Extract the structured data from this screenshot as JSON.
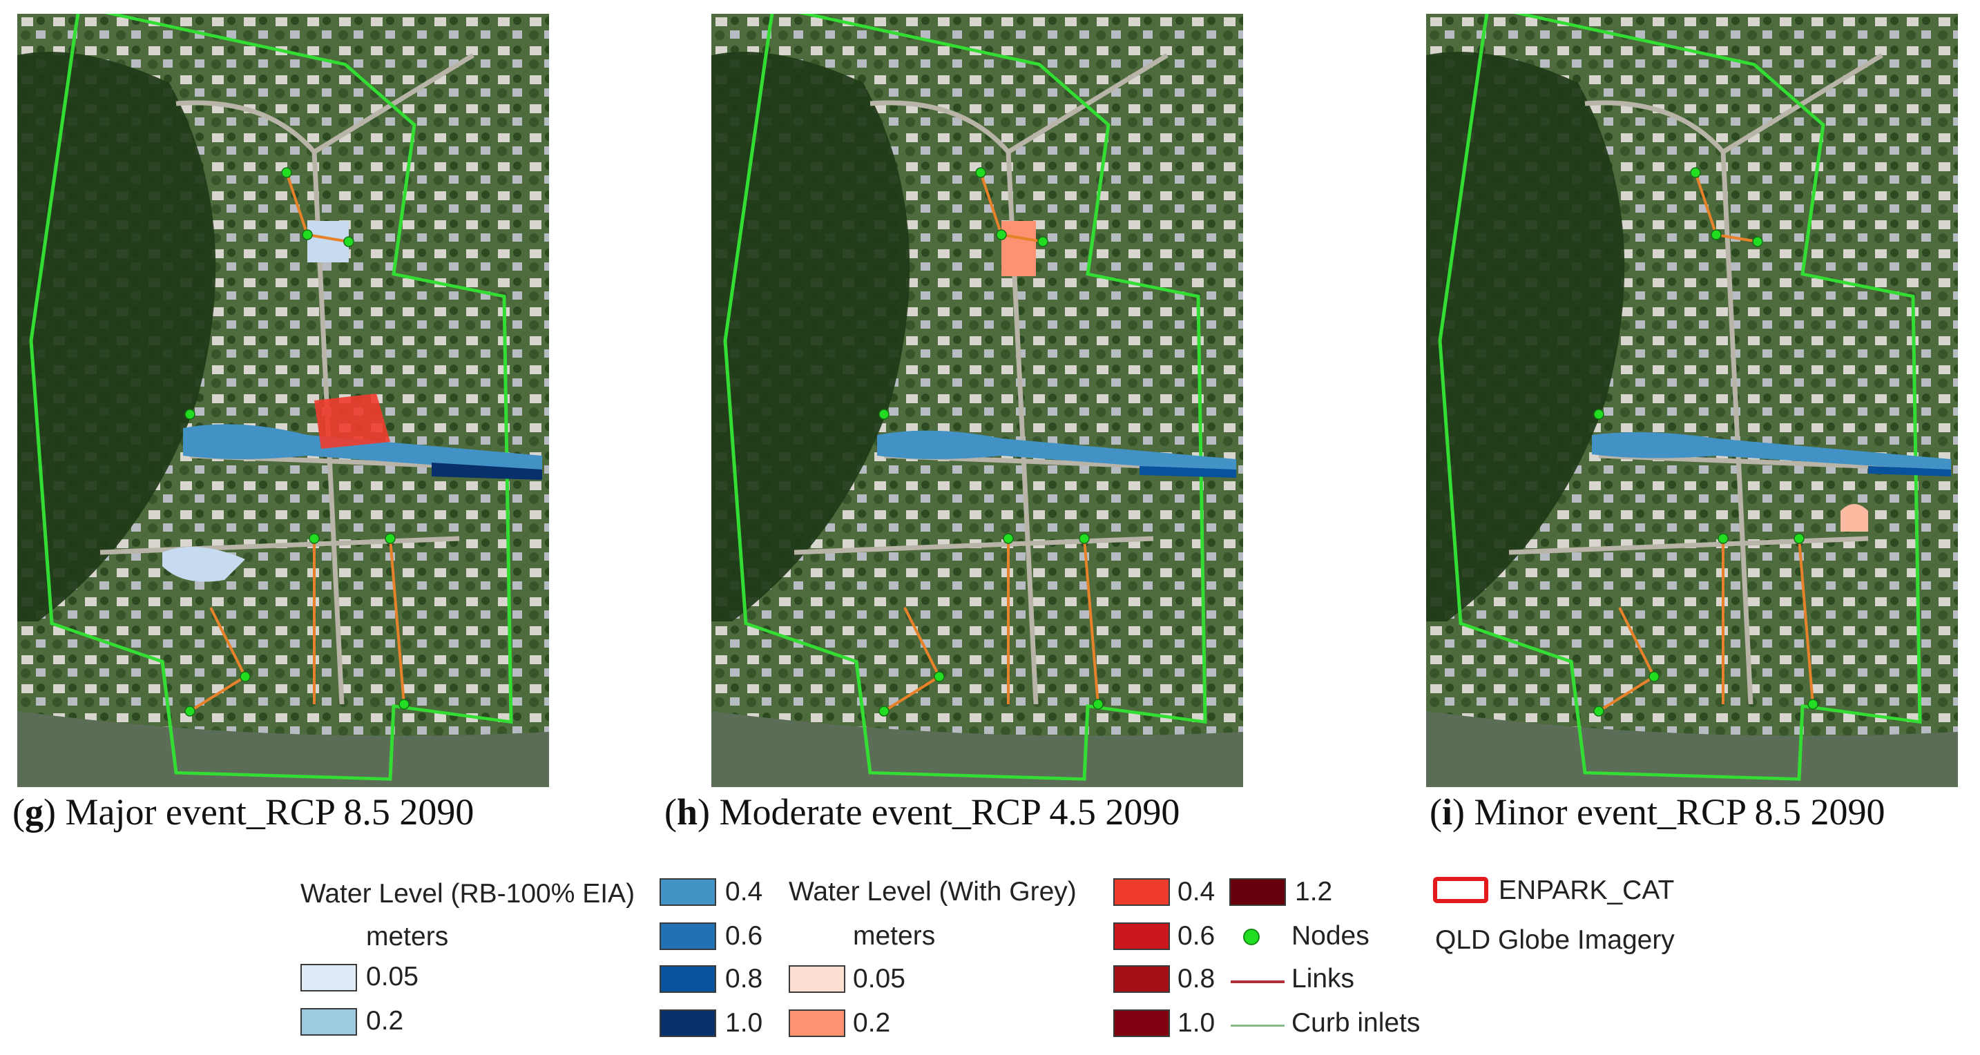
{
  "panels": [
    {
      "id": "g",
      "letter": "g",
      "title": ") Major event_RCP 8.5 2090",
      "scenario": "major"
    },
    {
      "id": "h",
      "letter": "h",
      "title": ") Moderate event_RCP 4.5 2090",
      "scenario": "moderate"
    },
    {
      "id": "i",
      "letter": "i",
      "title": ") Minor event_RCP 8.5 2090",
      "scenario": "minor"
    }
  ],
  "legend": {
    "blue_title": "Water Level (RB-100% EIA)",
    "blue_units": "meters",
    "blue_classes": [
      {
        "label": "0.05",
        "color": "#deebf7"
      },
      {
        "label": "0.2",
        "color": "#9ecae1"
      },
      {
        "label": "0.4",
        "color": "#4292c6"
      },
      {
        "label": "0.6",
        "color": "#2171b5"
      },
      {
        "label": "0.8",
        "color": "#08519c"
      },
      {
        "label": "1.0",
        "color": "#08306b"
      }
    ],
    "red_title": "Water Level (With Grey)",
    "red_units": "meters",
    "red_classes": [
      {
        "label": "0.05",
        "color": "#fee0d2"
      },
      {
        "label": "0.2",
        "color": "#fc9272"
      },
      {
        "label": "0.4",
        "color": "#ef3b2c"
      },
      {
        "label": "0.6",
        "color": "#cb181d"
      },
      {
        "label": "0.8",
        "color": "#a50f15"
      },
      {
        "label": "1.0",
        "color": "#800010"
      },
      {
        "label": "1.2",
        "color": "#67000d"
      }
    ],
    "nodes_label": "Nodes",
    "links_label": "Links",
    "curb_label": "Curb inlets",
    "catchment_label": "ENPARK_CAT",
    "imagery_label": "QLD Globe Imagery"
  },
  "colors": {
    "catchment": "#33dd33",
    "node": "#22dd22",
    "link_map": "#e8822a",
    "link_legend": "#b0303a",
    "curb": "#88bb88"
  }
}
